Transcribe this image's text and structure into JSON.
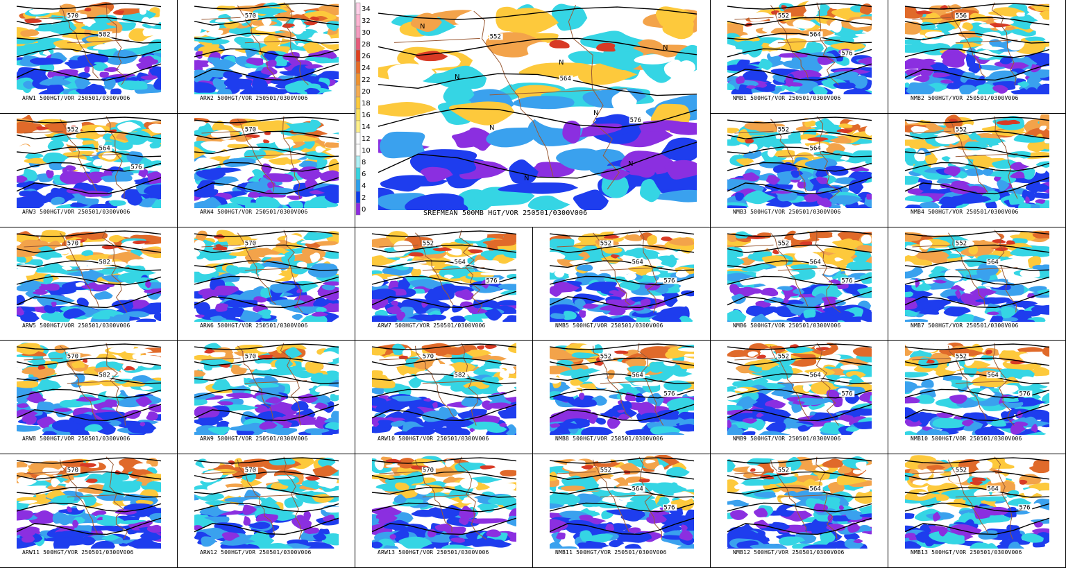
{
  "main_panel": {
    "caption": "SREFMEAN 500MB HGT/VOR 250501/0300V006",
    "contours": [
      "552",
      "564",
      "576"
    ],
    "colorbar": {
      "labels": [
        "34",
        "32",
        "30",
        "28",
        "26",
        "24",
        "22",
        "20",
        "18",
        "16",
        "14",
        "12",
        "10",
        "8",
        "6",
        "4",
        "2",
        "0"
      ],
      "colors": [
        "#ffd0e8",
        "#ffb4d2",
        "#f59bbf",
        "#e85a7a",
        "#e0401e",
        "#e86a25",
        "#f0922d",
        "#f6ac50",
        "#fdca3b",
        "#fde25a",
        "#fef08a",
        "#ffffff",
        "#ffffff",
        "#aef0f5",
        "#34d4e0",
        "#2aa0ee",
        "#0c3cec",
        "#8d2ae0"
      ]
    },
    "vortmax_labels": [
      "N",
      "N",
      "N",
      "N",
      "N",
      "N",
      "N",
      "N"
    ]
  },
  "palette": {
    "purple": "#8b2fe0",
    "blue": "#1e3dee",
    "mid_blue": "#3aa1ee",
    "cyan": "#35d5e4",
    "yellow": "#fdc93c",
    "orange": "#f3a34a",
    "dark_orange": "#e06a2a",
    "red": "#d83a25",
    "borders": "#9a5a35",
    "contour": "#000000"
  },
  "panels": [
    {
      "caption": "ARW1 500HGT/VOR 250501/0300V006",
      "labels": [
        "570",
        "582"
      ]
    },
    {
      "caption": "ARW2 500HGT/VOR 250501/0300V006",
      "labels": [
        "570"
      ]
    },
    {
      "caption": "NMB1 500HGT/VOR 250501/0300V006",
      "labels": [
        "552",
        "564",
        "576"
      ]
    },
    {
      "caption": "NMB2 500HGT/VOR 250501/0300V006",
      "labels": [
        "556"
      ]
    },
    {
      "caption": "ARW3 500HGT/VOR 250501/0300V006",
      "labels": [
        "552",
        "564",
        "576"
      ]
    },
    {
      "caption": "ARW4 500HGT/VOR 250501/0300V006",
      "labels": [
        "570"
      ]
    },
    {
      "caption": "NMB3 500HGT/VOR 250501/0300V006",
      "labels": [
        "552",
        "564"
      ]
    },
    {
      "caption": "NMB4 500HGT/VOR 250501/0300V006",
      "labels": [
        "552"
      ]
    },
    {
      "caption": "ARW5 500HGT/VOR 250501/0300V006",
      "labels": [
        "570",
        "582"
      ]
    },
    {
      "caption": "ARW6 500HGT/VOR 250501/0300V006",
      "labels": [
        "570"
      ]
    },
    {
      "caption": "ARW7 500HGT/VOR 250501/0300V006",
      "labels": [
        "552",
        "564",
        "576"
      ]
    },
    {
      "caption": "NMB5 500HGT/VOR 250501/0300V006",
      "labels": [
        "552",
        "564",
        "576"
      ]
    },
    {
      "caption": "NMB6 500HGT/VOR 250501/0300V006",
      "labels": [
        "552",
        "564",
        "576"
      ]
    },
    {
      "caption": "NMB7 500HGT/VOR 250501/0300V006",
      "labels": [
        "552",
        "564"
      ]
    },
    {
      "caption": "ARW8 500HGT/VOR 250501/0300V006",
      "labels": [
        "570",
        "582"
      ]
    },
    {
      "caption": "ARW9 500HGT/VOR 250501/0300V006",
      "labels": [
        "570"
      ]
    },
    {
      "caption": "ARW10 500HGT/VOR 250501/0300V006",
      "labels": [
        "570",
        "582"
      ]
    },
    {
      "caption": "NMB8 500HGT/VOR 250501/0300V006",
      "labels": [
        "552",
        "564",
        "576"
      ]
    },
    {
      "caption": "NMB9 500HGT/VOR 250501/0300V006",
      "labels": [
        "552",
        "564",
        "576"
      ]
    },
    {
      "caption": "NMB10 500HGT/VOR 250501/0300V006",
      "labels": [
        "552",
        "564",
        "576"
      ]
    },
    {
      "caption": "ARW11 500HGT/VOR 250501/0300V006",
      "labels": [
        "570"
      ]
    },
    {
      "caption": "ARW12 500HGT/VOR 250501/0300V006",
      "labels": [
        "570"
      ]
    },
    {
      "caption": "ARW13 500HGT/VOR 250501/0300V006",
      "labels": [
        "570"
      ]
    },
    {
      "caption": "NMB11 500HGT/VOR 250501/0300V006",
      "labels": [
        "552",
        "564",
        "576"
      ]
    },
    {
      "caption": "NMB12 500HGT/VOR 250501/0300V006",
      "labels": [
        "552",
        "564"
      ]
    },
    {
      "caption": "NMB13 500HGT/VOR 250501/0300V006",
      "labels": [
        "552",
        "564",
        "576"
      ]
    }
  ]
}
